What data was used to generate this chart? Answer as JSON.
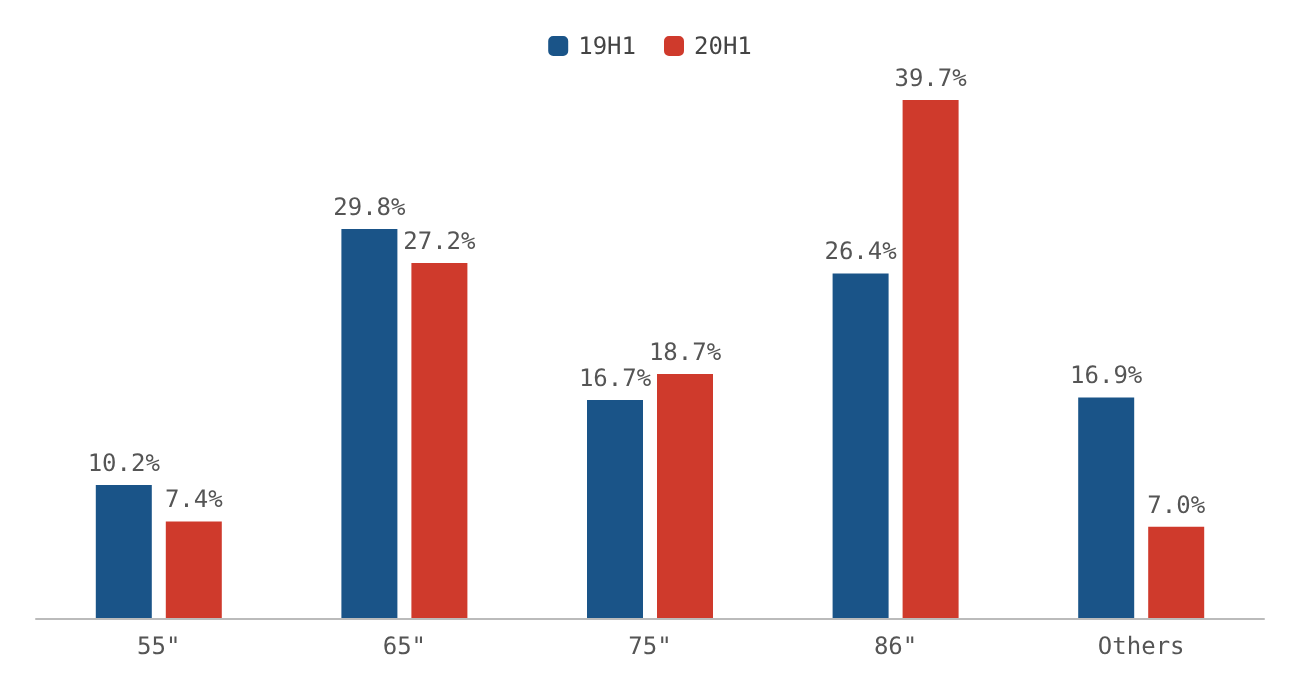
{
  "chart_data": {
    "type": "bar",
    "categories": [
      "55\"",
      "65\"",
      "75\"",
      "86\"",
      "Others"
    ],
    "series": [
      {
        "name": "19H1",
        "color": "#1a5488",
        "values": [
          10.2,
          29.8,
          16.7,
          26.4,
          16.9
        ],
        "value_labels": [
          "10.2%",
          "29.8%",
          "16.7%",
          "26.4%",
          "16.9%"
        ]
      },
      {
        "name": "20H1",
        "color": "#cf3a2c",
        "values": [
          7.4,
          27.2,
          18.7,
          39.7,
          7.0
        ],
        "value_labels": [
          "7.4%",
          "27.2%",
          "18.7%",
          "39.7%",
          "7.0%"
        ]
      }
    ],
    "legend": "top",
    "grid": false
  }
}
